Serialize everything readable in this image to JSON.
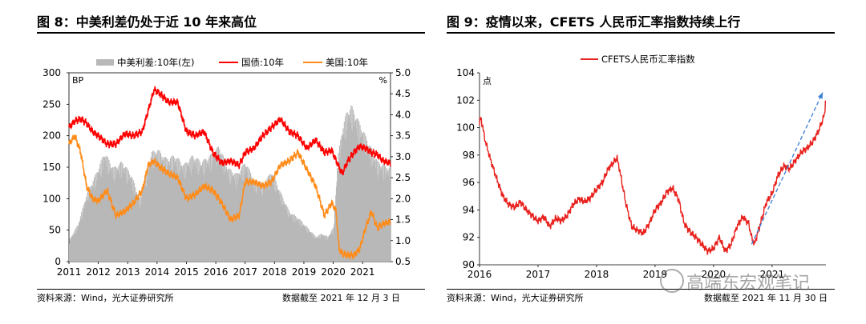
{
  "left_panel": {
    "title": "图 8：中美利差仍处于近 10 年来高位",
    "source": "资料来源：Wind，光大证券研究所",
    "cutoff": "数据截至 2021 年 12 月 3 日"
  },
  "right_panel": {
    "title": "图 9：疫情以来，CFETS 人民币汇率指数持续上行",
    "source": "资料来源：Wind，光大证券研究所",
    "cutoff": "数据截至 2021 年 11 月 30 日"
  },
  "watermark": "高端东宏观笔记",
  "chart_data": [
    {
      "type": "bar+line",
      "title": "中美利差仍处于近 10 年来高位",
      "left_axis": {
        "unit": "BP",
        "ylim": [
          0,
          300
        ],
        "ticks": [
          "0",
          "50",
          "100",
          "150",
          "200",
          "250",
          "300"
        ]
      },
      "right_axis": {
        "unit": "%",
        "ylim": [
          0.5,
          5.0
        ],
        "ticks": [
          "0.5",
          "1.0",
          "1.5",
          "2.0",
          "2.5",
          "3.0",
          "3.5",
          "4.0",
          "4.5",
          "5.0"
        ]
      },
      "x_ticks": [
        "2011",
        "2012",
        "2013",
        "2014",
        "2015",
        "2016",
        "2017",
        "2018",
        "2019",
        "2020",
        "2021"
      ],
      "x_range": [
        2011.0,
        2021.95
      ],
      "legend": [
        "中美利差:10年(左)",
        "国债:10年",
        "美国:10年"
      ],
      "colors": {
        "spread": "#b8b8b8",
        "china": "#ff0000",
        "us": "#ff8c1a"
      },
      "series": [
        {
          "name": "中美利差:10年(左)",
          "axis": "left",
          "x": [
            2011.0,
            2011.3,
            2011.6,
            2011.9,
            2012.2,
            2012.5,
            2012.8,
            2013.1,
            2013.4,
            2013.6,
            2013.8,
            2014.0,
            2014.3,
            2014.6,
            2014.9,
            2015.2,
            2015.5,
            2015.8,
            2016.1,
            2016.4,
            2016.7,
            2017.0,
            2017.3,
            2017.6,
            2017.9,
            2018.2,
            2018.5,
            2018.8,
            2019.0,
            2019.2,
            2019.4,
            2019.6,
            2019.8,
            2020.0,
            2020.15,
            2020.3,
            2020.45,
            2020.6,
            2020.75,
            2020.9,
            2021.1,
            2021.3,
            2021.5,
            2021.7,
            2021.92
          ],
          "values": [
            35,
            60,
            110,
            140,
            175,
            150,
            160,
            140,
            100,
            140,
            175,
            180,
            165,
            170,
            155,
            170,
            160,
            170,
            185,
            150,
            140,
            160,
            130,
            125,
            145,
            110,
            80,
            70,
            60,
            50,
            40,
            45,
            40,
            55,
            170,
            215,
            240,
            250,
            235,
            220,
            200,
            180,
            160,
            155,
            150
          ]
        },
        {
          "name": "国债:10年",
          "axis": "right",
          "x": [
            2011.0,
            2011.2,
            2011.4,
            2011.6,
            2011.8,
            2012.0,
            2012.3,
            2012.6,
            2012.9,
            2013.2,
            2013.5,
            2013.7,
            2013.9,
            2014.1,
            2014.4,
            2014.7,
            2015.0,
            2015.3,
            2015.6,
            2015.9,
            2016.2,
            2016.5,
            2016.8,
            2017.0,
            2017.3,
            2017.6,
            2017.9,
            2018.2,
            2018.5,
            2018.8,
            2019.1,
            2019.4,
            2019.7,
            2019.95,
            2020.1,
            2020.3,
            2020.5,
            2020.7,
            2020.9,
            2021.1,
            2021.3,
            2021.5,
            2021.7,
            2021.92
          ],
          "values": [
            3.7,
            3.85,
            3.9,
            3.8,
            3.6,
            3.5,
            3.3,
            3.3,
            3.55,
            3.5,
            3.6,
            4.1,
            4.6,
            4.5,
            4.3,
            4.3,
            3.6,
            3.5,
            3.6,
            3.1,
            2.85,
            2.9,
            2.8,
            3.1,
            3.2,
            3.5,
            3.7,
            3.9,
            3.6,
            3.5,
            3.2,
            3.4,
            3.1,
            3.15,
            2.9,
            2.6,
            2.9,
            3.1,
            3.25,
            3.2,
            3.1,
            3.05,
            2.9,
            2.85
          ]
        },
        {
          "name": "美国:10年",
          "axis": "right",
          "x": [
            2011.0,
            2011.2,
            2011.4,
            2011.6,
            2011.8,
            2012.0,
            2012.3,
            2012.6,
            2012.9,
            2013.2,
            2013.5,
            2013.7,
            2013.9,
            2014.1,
            2014.4,
            2014.7,
            2015.0,
            2015.3,
            2015.6,
            2015.9,
            2016.2,
            2016.5,
            2016.8,
            2017.0,
            2017.3,
            2017.6,
            2017.9,
            2018.2,
            2018.5,
            2018.8,
            2019.1,
            2019.4,
            2019.7,
            2019.95,
            2020.1,
            2020.2,
            2020.3,
            2020.5,
            2020.7,
            2020.9,
            2021.1,
            2021.3,
            2021.5,
            2021.7,
            2021.92
          ],
          "values": [
            3.3,
            3.5,
            3.1,
            2.3,
            2.0,
            1.95,
            2.2,
            1.6,
            1.7,
            1.9,
            2.2,
            2.8,
            2.9,
            2.75,
            2.6,
            2.5,
            2.0,
            2.1,
            2.3,
            2.2,
            1.9,
            1.5,
            1.6,
            2.4,
            2.4,
            2.3,
            2.4,
            2.8,
            2.9,
            3.1,
            2.7,
            2.3,
            1.6,
            1.9,
            1.7,
            0.8,
            0.7,
            0.65,
            0.65,
            0.8,
            1.3,
            1.7,
            1.3,
            1.4,
            1.45
          ]
        }
      ]
    },
    {
      "type": "line",
      "title": "疫情以来，CFETS 人民币汇率指数持续上行",
      "ylabel": "点",
      "ylim": [
        90,
        104
      ],
      "y_ticks": [
        "90",
        "92",
        "94",
        "96",
        "98",
        "100",
        "102",
        "104"
      ],
      "x_ticks": [
        "2016",
        "2017",
        "2018",
        "2019",
        "2020",
        "2021"
      ],
      "x_range": [
        2016.0,
        2021.92
      ],
      "legend": [
        "CFETS人民币汇率指数"
      ],
      "colors": {
        "index": "#e8231f",
        "trend": "#3a7fd5"
      },
      "series": [
        {
          "name": "CFETS人民币汇率指数",
          "x": [
            2016.0,
            2016.02,
            2016.1,
            2016.2,
            2016.3,
            2016.4,
            2016.5,
            2016.6,
            2016.7,
            2016.8,
            2016.9,
            2017.0,
            2017.1,
            2017.2,
            2017.3,
            2017.4,
            2017.5,
            2017.6,
            2017.7,
            2017.8,
            2017.9,
            2018.0,
            2018.1,
            2018.2,
            2018.3,
            2018.35,
            2018.4,
            2018.5,
            2018.6,
            2018.7,
            2018.8,
            2018.9,
            2019.0,
            2019.1,
            2019.2,
            2019.3,
            2019.4,
            2019.5,
            2019.6,
            2019.7,
            2019.8,
            2019.9,
            2020.0,
            2020.1,
            2020.2,
            2020.3,
            2020.4,
            2020.5,
            2020.6,
            2020.65,
            2020.7,
            2020.8,
            2020.9,
            2021.0,
            2021.1,
            2021.2,
            2021.3,
            2021.4,
            2021.5,
            2021.6,
            2021.7,
            2021.8,
            2021.9,
            2021.92
          ],
          "values": [
            100.2,
            100.8,
            99.0,
            97.5,
            96.2,
            95.0,
            94.4,
            94.2,
            94.6,
            94.0,
            93.6,
            93.2,
            93.5,
            92.8,
            93.4,
            93.2,
            93.6,
            94.4,
            94.8,
            94.6,
            94.9,
            95.5,
            96.0,
            97.0,
            97.5,
            97.8,
            96.8,
            94.5,
            92.8,
            92.5,
            92.3,
            93.0,
            94.0,
            94.5,
            95.3,
            95.6,
            94.8,
            93.0,
            92.4,
            92.0,
            91.5,
            91.0,
            91.2,
            92.0,
            91.0,
            91.5,
            92.8,
            93.5,
            93.0,
            92.0,
            91.5,
            93.0,
            94.5,
            95.2,
            96.5,
            97.2,
            97.0,
            97.6,
            98.2,
            98.5,
            99.0,
            99.8,
            101.0,
            102.8
          ]
        }
      ],
      "annotations": [
        {
          "type": "dashed-arrow",
          "from": [
            2020.65,
            91.5
          ],
          "to": [
            2021.92,
            102.8
          ]
        }
      ]
    }
  ]
}
